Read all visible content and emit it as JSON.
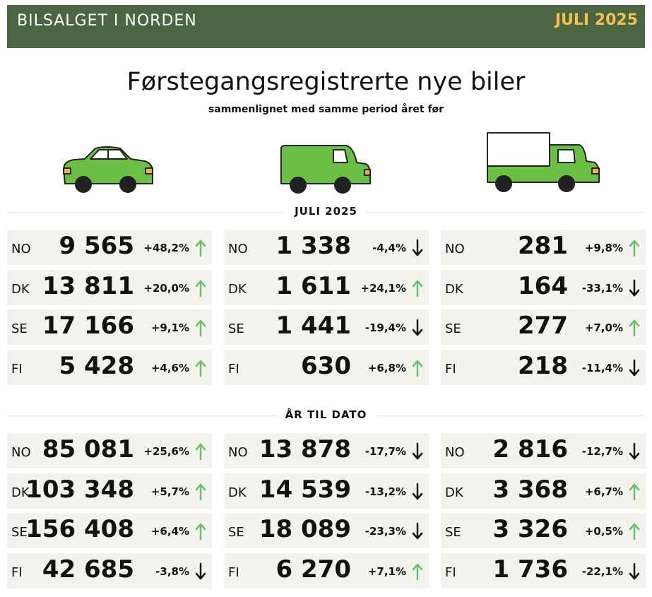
{
  "header": {
    "title": "BILSALGET I NORDEN",
    "date": "JULI 2025"
  },
  "title": "Førstegangsregistrerte nye biler",
  "subtitle": "sammenlignet med samme period året før",
  "sections": [
    {
      "label": "JULI 2025",
      "columns": [
        [
          {
            "country": "NO",
            "value": "9 565",
            "change": "+48,2%"
          },
          {
            "country": "DK",
            "value": "13 811",
            "change": "+20,0%"
          },
          {
            "country": "SE",
            "value": "17 166",
            "change": "+9,1%"
          },
          {
            "country": "FI",
            "value": "5 428",
            "change": "+4,6%"
          }
        ],
        [
          {
            "country": "NO",
            "value": "1 338",
            "change": "-4,4%"
          },
          {
            "country": "DK",
            "value": "1 611",
            "change": "+24,1%"
          },
          {
            "country": "SE",
            "value": "1 441",
            "change": "-19,4%"
          },
          {
            "country": "FI",
            "value": "630",
            "change": "+6,8%"
          }
        ],
        [
          {
            "country": "NO",
            "value": "281",
            "change": "+9,8%"
          },
          {
            "country": "DK",
            "value": "164",
            "change": "-33,1%"
          },
          {
            "country": "SE",
            "value": "277",
            "change": "+7,0%"
          },
          {
            "country": "FI",
            "value": "218",
            "change": "-11,4%"
          }
        ]
      ]
    },
    {
      "label": "ÅR TIL DATO",
      "columns": [
        [
          {
            "country": "NO",
            "value": "85 081",
            "change": "+25,6%"
          },
          {
            "country": "DK",
            "value": "103 348",
            "change": "+5,7%"
          },
          {
            "country": "SE",
            "value": "156 408",
            "change": "+6,4%"
          },
          {
            "country": "FI",
            "value": "42 685",
            "change": "-3,8%"
          }
        ],
        [
          {
            "country": "NO",
            "value": "13 878",
            "change": "-17,7%"
          },
          {
            "country": "DK",
            "value": "14 539",
            "change": "-13,2%"
          },
          {
            "country": "SE",
            "value": "18 089",
            "change": "-23,3%"
          },
          {
            "country": "FI",
            "value": "6 270",
            "change": "+7,1%"
          }
        ],
        [
          {
            "country": "NO",
            "value": "2 816",
            "change": "-12,7%"
          },
          {
            "country": "DK",
            "value": "3 368",
            "change": "+6,7%"
          },
          {
            "country": "SE",
            "value": "3 326",
            "change": "+0,5%"
          },
          {
            "country": "FI",
            "value": "1 736",
            "change": "-22,1%"
          }
        ]
      ]
    }
  ]
}
